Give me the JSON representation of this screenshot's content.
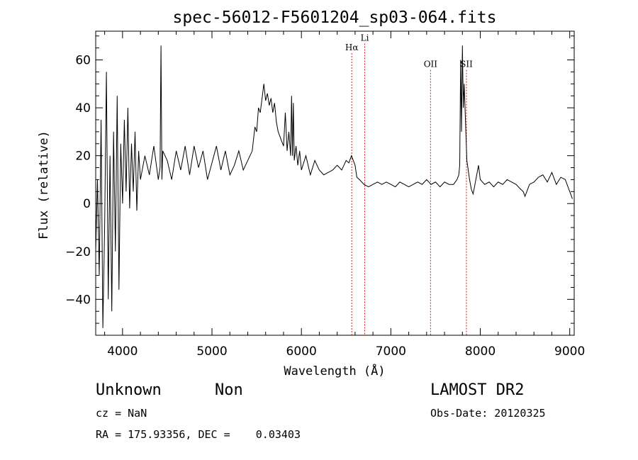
{
  "chart_data": {
    "type": "line",
    "title": "spec-56012-F5601204_sp03-064.fits",
    "xlabel": "Wavelength (Å)",
    "ylabel": "Flux (relative)",
    "xlim": [
      3700,
      9050
    ],
    "ylim": [
      -55,
      72
    ],
    "xticks": [
      4000,
      5000,
      6000,
      7000,
      8000,
      9000
    ],
    "yticks": [
      -40,
      -20,
      0,
      20,
      40,
      60
    ],
    "grid": false,
    "series": [
      {
        "x": [
          3700,
          3720,
          3740,
          3760,
          3780,
          3800,
          3820,
          3840,
          3860,
          3880,
          3900,
          3920,
          3940,
          3960,
          3980,
          4000,
          4020,
          4040,
          4060,
          4080,
          4100,
          4120,
          4140,
          4160,
          4180,
          4200,
          4250,
          4300,
          4350,
          4400,
          4420,
          4430,
          4440,
          4450,
          4500,
          4550,
          4600,
          4650,
          4700,
          4750,
          4800,
          4850,
          4900,
          4950,
          5000,
          5050,
          5100,
          5150,
          5200,
          5250,
          5300,
          5350,
          5400,
          5450,
          5480,
          5500,
          5520,
          5540,
          5560,
          5580,
          5600,
          5620,
          5640,
          5660,
          5680,
          5700,
          5720,
          5740,
          5760,
          5780,
          5800,
          5820,
          5840,
          5860,
          5880,
          5890,
          5900,
          5910,
          5920,
          5940,
          5960,
          5980,
          6000,
          6050,
          6100,
          6150,
          6200,
          6250,
          6300,
          6350,
          6400,
          6450,
          6500,
          6530,
          6560,
          6580,
          6600,
          6620,
          6650,
          6700,
          6750,
          6800,
          6850,
          6900,
          6950,
          7000,
          7050,
          7100,
          7150,
          7200,
          7250,
          7300,
          7350,
          7400,
          7450,
          7500,
          7550,
          7600,
          7650,
          7700,
          7740,
          7760,
          7770,
          7780,
          7790,
          7800,
          7810,
          7820,
          7850,
          7880,
          7900,
          7920,
          7940,
          7960,
          7980,
          8000,
          8050,
          8100,
          8150,
          8200,
          8250,
          8300,
          8350,
          8400,
          8450,
          8480,
          8500,
          8550,
          8600,
          8650,
          8700,
          8750,
          8800,
          8850,
          8900,
          8950,
          9000,
          9030
        ],
        "y": [
          -20,
          10,
          -30,
          35,
          -52,
          -10,
          55,
          -40,
          20,
          -45,
          30,
          -20,
          45,
          -36,
          25,
          0,
          35,
          5,
          40,
          -2,
          25,
          5,
          30,
          -3,
          22,
          10,
          20,
          12,
          24,
          10,
          15,
          66,
          10,
          22,
          18,
          10,
          22,
          14,
          24,
          12,
          24,
          15,
          22,
          10,
          17,
          24,
          14,
          22,
          12,
          16,
          22,
          14,
          18,
          22,
          32,
          30,
          40,
          38,
          44,
          50,
          43,
          46,
          41,
          44,
          38,
          42,
          34,
          30,
          28,
          26,
          24,
          38,
          22,
          30,
          20,
          45,
          20,
          42,
          18,
          24,
          16,
          22,
          14,
          20,
          12,
          18,
          14,
          12,
          13,
          14,
          16,
          14,
          18,
          17,
          20,
          18,
          16,
          11,
          10,
          8,
          7,
          8,
          9,
          8,
          9,
          8,
          7,
          9,
          8,
          7,
          8,
          9,
          8,
          10,
          8,
          9,
          7,
          9,
          8,
          8,
          10,
          12,
          16,
          60,
          30,
          66,
          40,
          50,
          18,
          10,
          6,
          4,
          8,
          12,
          16,
          10,
          8,
          9,
          7,
          9,
          8,
          10,
          9,
          8,
          6,
          5,
          3,
          8,
          9,
          11,
          12,
          9,
          13,
          8,
          11,
          10,
          5,
          2
        ]
      }
    ],
    "lines": [
      {
        "label": "Hα",
        "x": 6563,
        "label_y": 64
      },
      {
        "label": "Li",
        "x": 6708,
        "label_y": 68
      },
      {
        "label": "OII",
        "x": 7444,
        "label_y": 57
      },
      {
        "label": "SII",
        "x": 7845,
        "label_y": 57
      }
    ],
    "line_color": "#cc2222"
  },
  "info": {
    "class": "Unknown",
    "subclass": "Non",
    "survey": "LAMOST DR2",
    "cz": "cz = NaN",
    "obs_date": "Obs-Date: 20120325",
    "coords": "RA = 175.93356, DEC =    0.03403"
  }
}
